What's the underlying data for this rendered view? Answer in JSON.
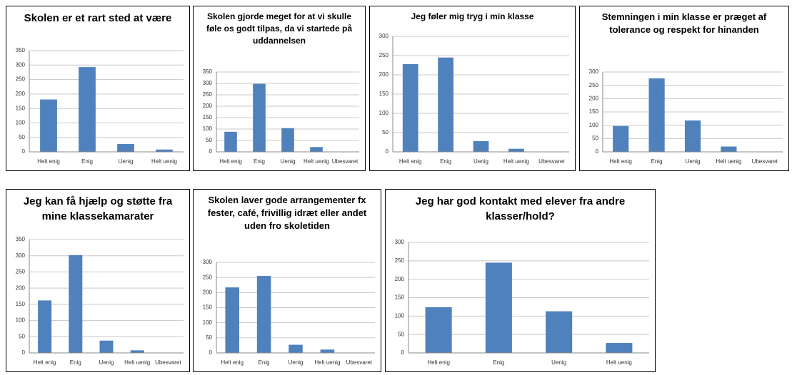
{
  "chart_data": [
    {
      "type": "bar",
      "title": "Skolen er et rart sted at være",
      "categories": [
        "Helt enig",
        "Enig",
        "Uenig",
        "Helt uenig"
      ],
      "values": [
        181,
        293,
        27,
        8
      ],
      "color": "#4f81bd",
      "ylim": [
        0,
        350
      ],
      "yticks": [
        0,
        50,
        100,
        150,
        200,
        250,
        300,
        350
      ],
      "grid": true
    },
    {
      "type": "bar",
      "title": "Skolen gjorde meget for at vi skulle føle os godt tilpas, da vi startede på uddannelsen",
      "categories": [
        "Helt enig",
        "Enig",
        "Uenig",
        "Helt uenig",
        "Ubesvaret"
      ],
      "values": [
        88,
        298,
        104,
        21,
        0
      ],
      "color": "#4f81bd",
      "ylim": [
        0,
        350
      ],
      "yticks": [
        0,
        50,
        100,
        150,
        200,
        250,
        300,
        350
      ],
      "grid": true
    },
    {
      "type": "bar",
      "title": "Jeg føler mig tryg i min klasse",
      "categories": [
        "Helt enig",
        "Enig",
        "Uenig",
        "Helt uenig",
        "Ubesvaret"
      ],
      "values": [
        228,
        245,
        28,
        8,
        0
      ],
      "color": "#4f81bd",
      "ylim": [
        0,
        300
      ],
      "yticks": [
        0,
        50,
        100,
        150,
        200,
        250,
        300
      ],
      "grid": true
    },
    {
      "type": "bar",
      "title": "Stemningen i min klasse er præget af tolerance og respekt for hinanden",
      "categories": [
        "Helt enig",
        "Enig",
        "Uenig",
        "Helt uenig",
        "Ubesvaret"
      ],
      "values": [
        97,
        276,
        118,
        20,
        0
      ],
      "color": "#4f81bd",
      "ylim": [
        0,
        300
      ],
      "yticks": [
        0,
        50,
        100,
        150,
        200,
        250,
        300
      ],
      "grid": true
    },
    {
      "type": "bar",
      "title": "Jeg kan få hjælp og støtte fra mine klassekamarater",
      "categories": [
        "Helt enig",
        "Enig",
        "Uenig",
        "Helt uenig",
        "Ubesvaret"
      ],
      "values": [
        162,
        302,
        38,
        8,
        0
      ],
      "color": "#4f81bd",
      "ylim": [
        0,
        350
      ],
      "yticks": [
        0,
        50,
        100,
        150,
        200,
        250,
        300,
        350
      ],
      "grid": true
    },
    {
      "type": "bar",
      "title": "Skolen laver gode arrangementer fx fester, café, frivillig idræt eller andet uden fro skoletiden",
      "categories": [
        "Helt enig",
        "Enig",
        "Uenig",
        "Helt uenig",
        "Ubesvaret"
      ],
      "values": [
        217,
        255,
        27,
        11,
        0
      ],
      "color": "#4f81bd",
      "ylim": [
        0,
        300
      ],
      "yticks": [
        0,
        50,
        100,
        150,
        200,
        250,
        300
      ],
      "grid": true
    },
    {
      "type": "bar",
      "title": "Jeg har god kontakt med elever fra andre klasser/hold?",
      "categories": [
        "Helt enig",
        "Enig",
        "Uenig",
        "Helt uenig"
      ],
      "values": [
        124,
        245,
        113,
        27
      ],
      "color": "#4f81bd",
      "ylim": [
        0,
        300
      ],
      "yticks": [
        0,
        50,
        100,
        150,
        200,
        250,
        300
      ],
      "grid": true
    }
  ]
}
